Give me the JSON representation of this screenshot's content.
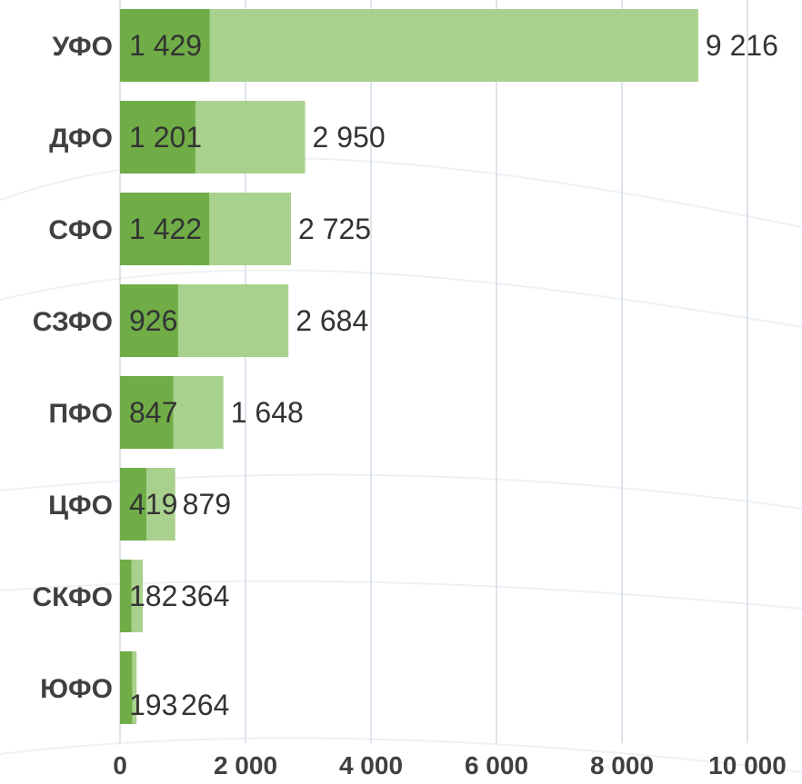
{
  "chart_data": {
    "type": "bar",
    "orientation": "horizontal",
    "categories": [
      "УФО",
      "ДФО",
      "СФО",
      "СЗФО",
      "ПФО",
      "ЦФО",
      "СКФО",
      "ЮФО"
    ],
    "series": [
      {
        "values": [
          1429,
          1201,
          1422,
          926,
          847,
          419,
          182,
          193
        ],
        "labels": [
          "1 429",
          "1 201",
          "1 422",
          "926",
          "847",
          "419",
          "182",
          "193"
        ]
      },
      {
        "values": [
          9216,
          2950,
          2725,
          2684,
          1648,
          879,
          364,
          264
        ],
        "labels": [
          "9 216",
          "2 950",
          "2 725",
          "2 684",
          "1 648",
          "879",
          "364",
          "264"
        ]
      }
    ],
    "xlim": [
      0,
      10000
    ],
    "xticks": [
      0,
      2000,
      4000,
      6000,
      8000,
      10000
    ],
    "xtick_labels": [
      "0",
      "2 000",
      "4 000",
      "6 000",
      "8 000",
      "10 000"
    ],
    "grid": "vertical",
    "legend": "none",
    "colors": {
      "inner": "#70ad47",
      "outer": "#a9d18e"
    }
  }
}
